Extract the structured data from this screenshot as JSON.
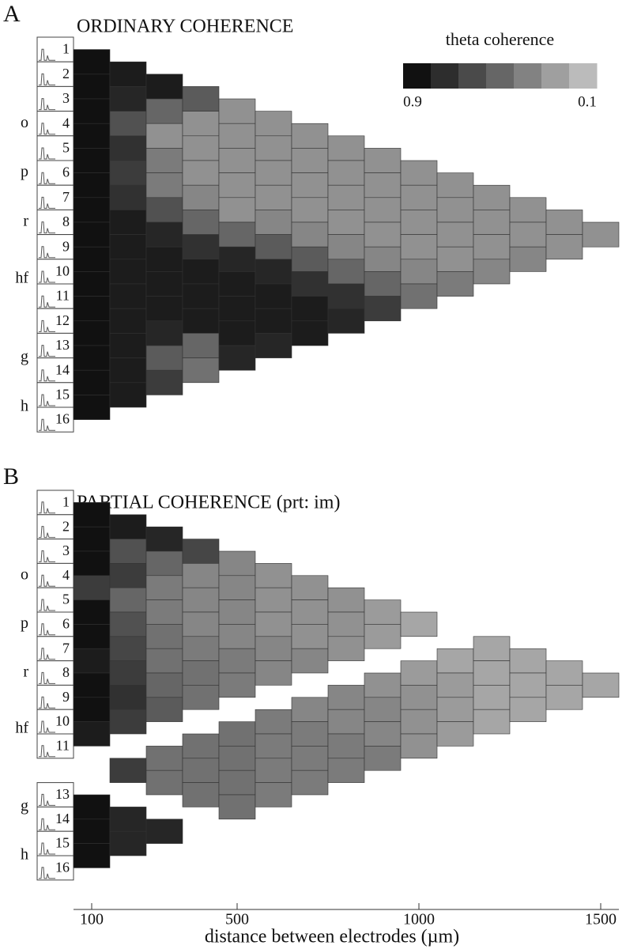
{
  "chart_data": [
    {
      "type": "coherence-triangle",
      "panel_label": "A",
      "title": "ORDINARY COHERENCE",
      "channels": [
        "1",
        "2",
        "3",
        "4",
        "5",
        "6",
        "7",
        "8",
        "9",
        "10",
        "11",
        "12",
        "13",
        "14",
        "15",
        "16"
      ],
      "regions": [
        "o",
        "p",
        "r",
        "hf",
        "g",
        "h"
      ],
      "colorbar": {
        "title": "theta coherence",
        "lim": [
          0.9,
          0.1
        ],
        "ticks": [
          0.9,
          0.1
        ]
      },
      "coherence": [
        [
          0.9,
          0.9,
          0.9,
          0.9,
          0.9,
          0.9,
          0.9,
          0.9,
          0.9,
          0.9,
          0.9,
          0.9,
          0.9,
          0.9,
          0.9
        ],
        [
          0.85,
          0.8,
          0.6,
          0.75,
          0.7,
          0.75,
          0.85,
          0.85,
          0.85,
          0.85,
          0.85,
          0.85,
          0.85,
          0.85
        ],
        [
          0.85,
          0.5,
          0.3,
          0.4,
          0.4,
          0.6,
          0.8,
          0.85,
          0.85,
          0.85,
          0.8,
          0.55,
          0.7
        ],
        [
          0.55,
          0.3,
          0.3,
          0.3,
          0.35,
          0.5,
          0.75,
          0.85,
          0.85,
          0.85,
          0.5,
          0.45
        ],
        [
          0.3,
          0.3,
          0.3,
          0.3,
          0.3,
          0.5,
          0.8,
          0.85,
          0.85,
          0.85,
          0.8
        ],
        [
          0.3,
          0.3,
          0.3,
          0.3,
          0.35,
          0.55,
          0.8,
          0.85,
          0.85,
          0.8
        ],
        [
          0.3,
          0.3,
          0.3,
          0.3,
          0.35,
          0.55,
          0.75,
          0.85,
          0.85
        ],
        [
          0.3,
          0.3,
          0.3,
          0.3,
          0.35,
          0.5,
          0.75,
          0.8
        ],
        [
          0.3,
          0.3,
          0.3,
          0.3,
          0.35,
          0.5,
          0.7
        ],
        [
          0.3,
          0.3,
          0.3,
          0.3,
          0.35,
          0.45
        ],
        [
          0.3,
          0.3,
          0.3,
          0.3,
          0.4
        ],
        [
          0.3,
          0.3,
          0.3,
          0.35
        ],
        [
          0.3,
          0.3,
          0.35
        ],
        [
          0.3,
          0.3
        ],
        [
          0.3
        ]
      ]
    },
    {
      "type": "coherence-triangle",
      "panel_label": "B",
      "title": "PARTIAL COHERENCE (prt: im)",
      "channels": [
        "1",
        "2",
        "3",
        "4",
        "5",
        "6",
        "7",
        "8",
        "9",
        "10",
        "11",
        null,
        "13",
        "14",
        "15",
        "16"
      ],
      "regions": [
        "o",
        "p",
        "r",
        "hf",
        "g",
        "h"
      ],
      "coherence": [
        [
          0.9,
          0.9,
          0.9,
          0.7,
          0.9,
          0.9,
          0.85,
          0.9,
          0.9,
          0.85,
          null,
          null,
          0.9,
          0.9,
          0.9
        ],
        [
          0.85,
          0.6,
          0.7,
          0.5,
          0.6,
          0.65,
          0.7,
          0.75,
          0.7,
          null,
          0.7,
          null,
          0.8,
          0.8
        ],
        [
          0.8,
          0.5,
          0.4,
          0.4,
          0.45,
          0.45,
          0.5,
          0.55,
          null,
          0.45,
          0.45,
          null,
          0.8
        ],
        [
          0.65,
          0.35,
          0.35,
          0.35,
          0.4,
          0.45,
          0.45,
          null,
          0.45,
          0.45,
          0.45,
          null
        ],
        [
          0.35,
          0.35,
          0.35,
          0.35,
          0.4,
          0.4,
          null,
          0.45,
          0.45,
          0.45,
          0.45
        ],
        [
          0.3,
          0.3,
          0.3,
          0.35,
          0.35,
          null,
          0.4,
          0.4,
          0.4,
          0.4
        ],
        [
          0.3,
          0.3,
          0.3,
          0.35,
          null,
          0.35,
          0.4,
          0.4,
          0.4
        ],
        [
          0.3,
          0.3,
          0.3,
          null,
          0.35,
          0.35,
          0.4,
          0.4
        ],
        [
          0.25,
          0.25,
          null,
          0.3,
          0.35,
          0.35,
          0.4
        ],
        [
          0.2,
          null,
          0.25,
          0.3,
          0.3,
          0.3
        ],
        [
          null,
          0.2,
          0.25,
          0.25,
          0.25
        ],
        [
          0.2,
          0.2,
          0.2,
          0.2
        ],
        [
          0.2,
          0.2,
          0.2
        ],
        [
          0.2,
          0.2
        ],
        [
          0.2
        ]
      ],
      "x_label": "distance between electrodes (µm)",
      "xlim": [
        50,
        1550
      ],
      "xticks": [
        100,
        500,
        1000,
        1500
      ]
    }
  ]
}
